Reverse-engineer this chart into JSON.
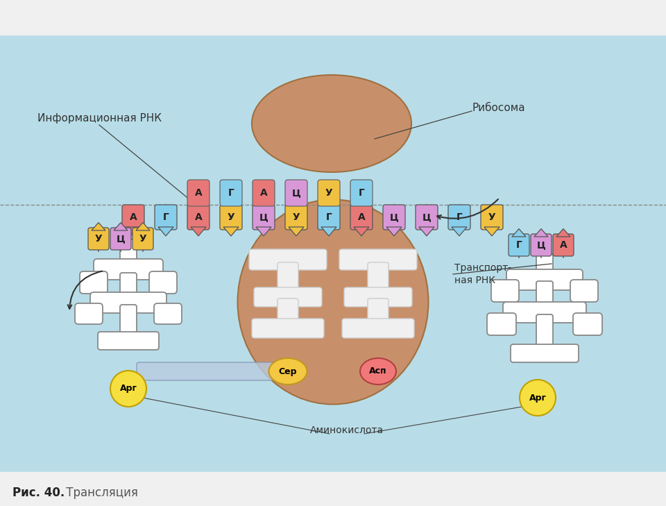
{
  "bg_color": "#b8dde8",
  "white_bg": "#f0f0f0",
  "ribosome_color": "#c8906a",
  "ribosome_edge": "#a07040",
  "title_bold": "Рис. 40.",
  "title_normal": " Трансляция",
  "label_info_rnk": "Информационная РНК",
  "label_ribosome": "Рибосома",
  "label_transport_rnk": "Транспорт-\nная РНК",
  "label_amino": "Аминокислота",
  "mrna_seq": [
    "А",
    "Г",
    "А",
    "У",
    "Ц",
    "У",
    "Г",
    "А",
    "Ц",
    "Ц",
    "Г",
    "У"
  ],
  "mrna_colors": [
    "#e87878",
    "#87ceeb",
    "#e87878",
    "#f0c040",
    "#d898d8",
    "#f0c040",
    "#87ceeb",
    "#e87878",
    "#d898d8",
    "#d898d8",
    "#87ceeb",
    "#f0c040"
  ],
  "trna_anticodon": [
    "А",
    "Г",
    "А",
    "Ц",
    "У",
    "Г"
  ],
  "trna_anticodon_colors": [
    "#e87878",
    "#87ceeb",
    "#e87878",
    "#d898d8",
    "#f0c040",
    "#87ceeb"
  ],
  "left_anti": [
    "У",
    "Ц",
    "У"
  ],
  "left_anti_colors": [
    "#f0c040",
    "#d898d8",
    "#f0c040"
  ],
  "right_anti": [
    "Г",
    "Ц",
    "А"
  ],
  "right_anti_colors": [
    "#87ceeb",
    "#d898d8",
    "#e87878"
  ],
  "ser_color": "#f5c842",
  "asp_color": "#f07878",
  "arg_color": "#f5e040",
  "chain_color": "#b8cce0"
}
